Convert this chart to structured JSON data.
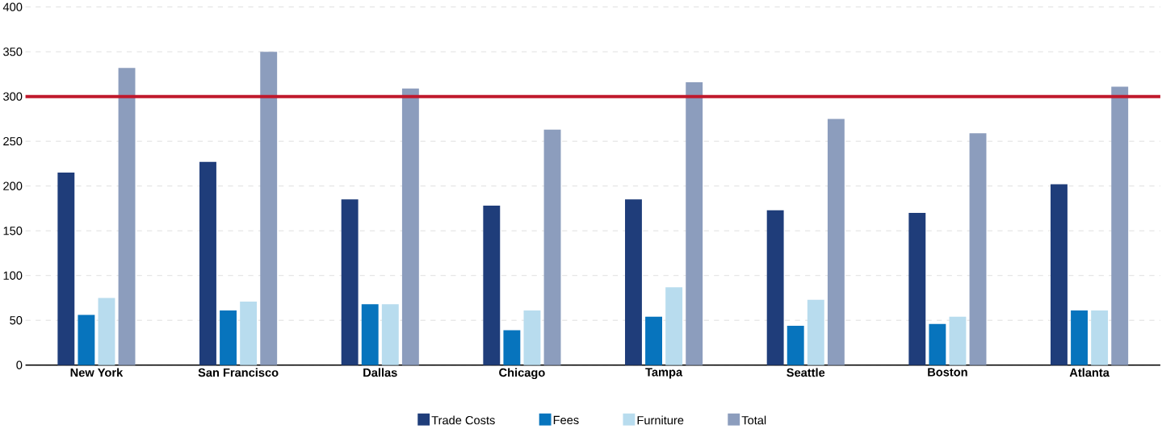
{
  "chart_data": {
    "type": "bar",
    "categories": [
      "New York",
      "San Francisco",
      "Dallas",
      "Chicago",
      "Tampa",
      "Seattle",
      "Boston",
      "Atlanta"
    ],
    "series": [
      {
        "name": "Trade Costs",
        "color": "#1f3d7a",
        "values": [
          215,
          227,
          185,
          178,
          185,
          173,
          170,
          202
        ]
      },
      {
        "name": "Fees",
        "color": "#0774bd",
        "values": [
          56,
          61,
          68,
          39,
          54,
          44,
          46,
          61
        ]
      },
      {
        "name": "Furniture",
        "color": "#b8dcee",
        "values": [
          75,
          71,
          68,
          61,
          87,
          73,
          54,
          61
        ]
      },
      {
        "name": "Total",
        "color": "#8c9dbd",
        "values": [
          332,
          350,
          309,
          263,
          316,
          275,
          259,
          311
        ]
      }
    ],
    "ylim": [
      0,
      400
    ],
    "yticks": [
      0,
      50,
      100,
      150,
      200,
      250,
      300,
      350,
      400
    ],
    "grid": "y",
    "legend": "bottom",
    "ref_lines": [
      {
        "axis": "y",
        "value": 300,
        "color": "#c0192c"
      }
    ]
  }
}
